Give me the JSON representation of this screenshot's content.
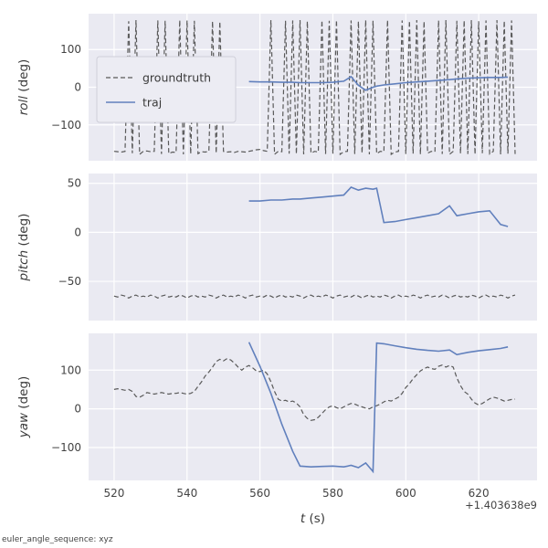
{
  "footer_note": "euler_angle_sequence: xyz",
  "chart_data": {
    "type": "line",
    "xlabel_var": "t",
    "xlabel_unit": " (s)",
    "x_offset_text": "+1.403638e9",
    "xlim": [
      513,
      636
    ],
    "xticks": [
      520,
      540,
      560,
      580,
      600,
      620
    ],
    "grid": true,
    "legend": {
      "position": "upper left",
      "entries": [
        "groundtruth",
        "traj"
      ]
    },
    "colors": {
      "axes_bg": "#eaeaf2",
      "grid": "#ffffff",
      "groundtruth": "#595959",
      "traj": "#6180bd",
      "text": "#3a3a3a",
      "tick_text": "#434343",
      "legend_bg": "#ececf3",
      "legend_border": "#cfcfd9"
    },
    "subplots": [
      {
        "key": "roll",
        "ylabel_var": "roll",
        "ylabel_unit": " (deg)",
        "ylim": [
          -195,
          195
        ],
        "yticks": [
          -100,
          0,
          100
        ],
        "legend": true
      },
      {
        "key": "pitch",
        "ylabel_var": "pitch",
        "ylabel_unit": " (deg)",
        "ylim": [
          -90,
          60
        ],
        "yticks": [
          -50,
          0,
          50
        ],
        "legend": false
      },
      {
        "key": "yaw",
        "ylabel_var": "yaw",
        "ylabel_unit": " (deg)",
        "ylim": [
          -185,
          195
        ],
        "yticks": [
          -100,
          0,
          100
        ],
        "legend": false
      }
    ],
    "series": [
      {
        "name": "groundtruth",
        "style": "dashed",
        "t0": 520,
        "dt": 1,
        "roll": [
          -170,
          -171,
          -172,
          -170,
          175,
          -175,
          178,
          -178,
          -170,
          -169,
          -171,
          -170,
          177,
          -177,
          176,
          -176,
          -172,
          -173,
          178,
          -178,
          177,
          -177,
          176,
          -176,
          -171,
          -172,
          -170,
          175,
          -175,
          174,
          -170,
          -172,
          -171,
          -173,
          -170,
          -171,
          -172,
          -170,
          -168,
          -166,
          -165,
          -168,
          -170,
          178,
          -178,
          -170,
          -171,
          176,
          -176,
          177,
          -177,
          178,
          -178,
          175,
          -175,
          -170,
          -172,
          177,
          -177,
          176,
          -176,
          178,
          -178,
          -171,
          -170,
          177,
          -177,
          175,
          -175,
          178,
          -178,
          176,
          -176,
          -170,
          -171,
          178,
          -178,
          -172,
          -170,
          177,
          -177,
          176,
          -176,
          178,
          -178,
          175,
          -175,
          -170,
          -171,
          177,
          -177,
          178,
          -178,
          -170,
          176,
          -176,
          177,
          -177,
          178,
          -178,
          175,
          -175,
          177,
          -177,
          -170,
          178,
          -178,
          176,
          -176,
          177,
          -177
        ],
        "pitch": [
          -65,
          -66,
          -64,
          -65,
          -67,
          -65,
          -64,
          -66,
          -65,
          -66,
          -64,
          -65,
          -67,
          -65,
          -64,
          -66,
          -65,
          -66,
          -64,
          -65,
          -67,
          -65,
          -64,
          -66,
          -65,
          -66,
          -64,
          -65,
          -67,
          -65,
          -64,
          -66,
          -65,
          -66,
          -64,
          -65,
          -67,
          -65,
          -64,
          -66,
          -65,
          -66,
          -64,
          -65,
          -67,
          -65,
          -64,
          -66,
          -65,
          -66,
          -64,
          -65,
          -67,
          -65,
          -64,
          -66,
          -65,
          -66,
          -64,
          -65,
          -67,
          -65,
          -64,
          -66,
          -65,
          -66,
          -64,
          -65,
          -67,
          -65,
          -64,
          -66,
          -65,
          -66,
          -64,
          -65,
          -67,
          -65,
          -64,
          -66,
          -65,
          -66,
          -64,
          -65,
          -67,
          -65,
          -64,
          -66,
          -65,
          -66,
          -64,
          -65,
          -67,
          -65,
          -64,
          -66,
          -65,
          -66,
          -64,
          -65,
          -67,
          -65,
          -64,
          -66,
          -65,
          -66,
          -64,
          -65,
          -67,
          -65,
          -64
        ],
        "yaw": [
          50,
          52,
          50,
          48,
          50,
          45,
          32,
          30,
          35,
          42,
          40,
          38,
          40,
          42,
          40,
          38,
          40,
          40,
          42,
          40,
          38,
          40,
          45,
          58,
          70,
          85,
          95,
          108,
          122,
          128,
          124,
          130,
          126,
          118,
          108,
          100,
          108,
          112,
          106,
          98,
          96,
          100,
          90,
          70,
          45,
          25,
          20,
          22,
          18,
          20,
          15,
          5,
          -15,
          -25,
          -30,
          -28,
          -22,
          -12,
          -2,
          5,
          8,
          3,
          0,
          5,
          10,
          14,
          12,
          8,
          5,
          2,
          0,
          5,
          8,
          12,
          18,
          22,
          20,
          25,
          30,
          40,
          55,
          65,
          78,
          88,
          98,
          104,
          108,
          104,
          102,
          110,
          113,
          108,
          112,
          108,
          80,
          60,
          45,
          38,
          25,
          15,
          10,
          14,
          20,
          26,
          30,
          28,
          24,
          20,
          22,
          24,
          25
        ]
      },
      {
        "name": "traj",
        "style": "solid",
        "t": [
          557,
          560,
          563,
          566,
          569,
          571,
          574,
          577,
          580,
          583,
          585,
          587,
          589,
          591,
          592,
          594,
          597,
          600,
          603,
          606,
          609,
          612,
          614,
          617,
          620,
          623,
          626,
          628
        ],
        "roll": [
          15,
          14,
          14,
          13,
          13,
          12,
          12,
          12,
          13,
          16,
          28,
          5,
          -8,
          0,
          3,
          6,
          9,
          12,
          14,
          16,
          18,
          20,
          22,
          24,
          25,
          26,
          26,
          27
        ],
        "pitch": [
          32,
          32,
          33,
          33,
          34,
          34,
          35,
          36,
          37,
          38,
          46,
          43,
          45,
          44,
          45,
          10,
          11,
          13,
          15,
          17,
          19,
          27,
          17,
          19,
          21,
          22,
          8,
          6
        ],
        "yaw": [
          172,
          110,
          40,
          -40,
          -110,
          -148,
          -150,
          -149,
          -148,
          -150,
          -146,
          -152,
          -140,
          -162,
          170,
          168,
          163,
          158,
          154,
          151,
          149,
          152,
          140,
          146,
          150,
          153,
          156,
          160
        ]
      }
    ]
  }
}
